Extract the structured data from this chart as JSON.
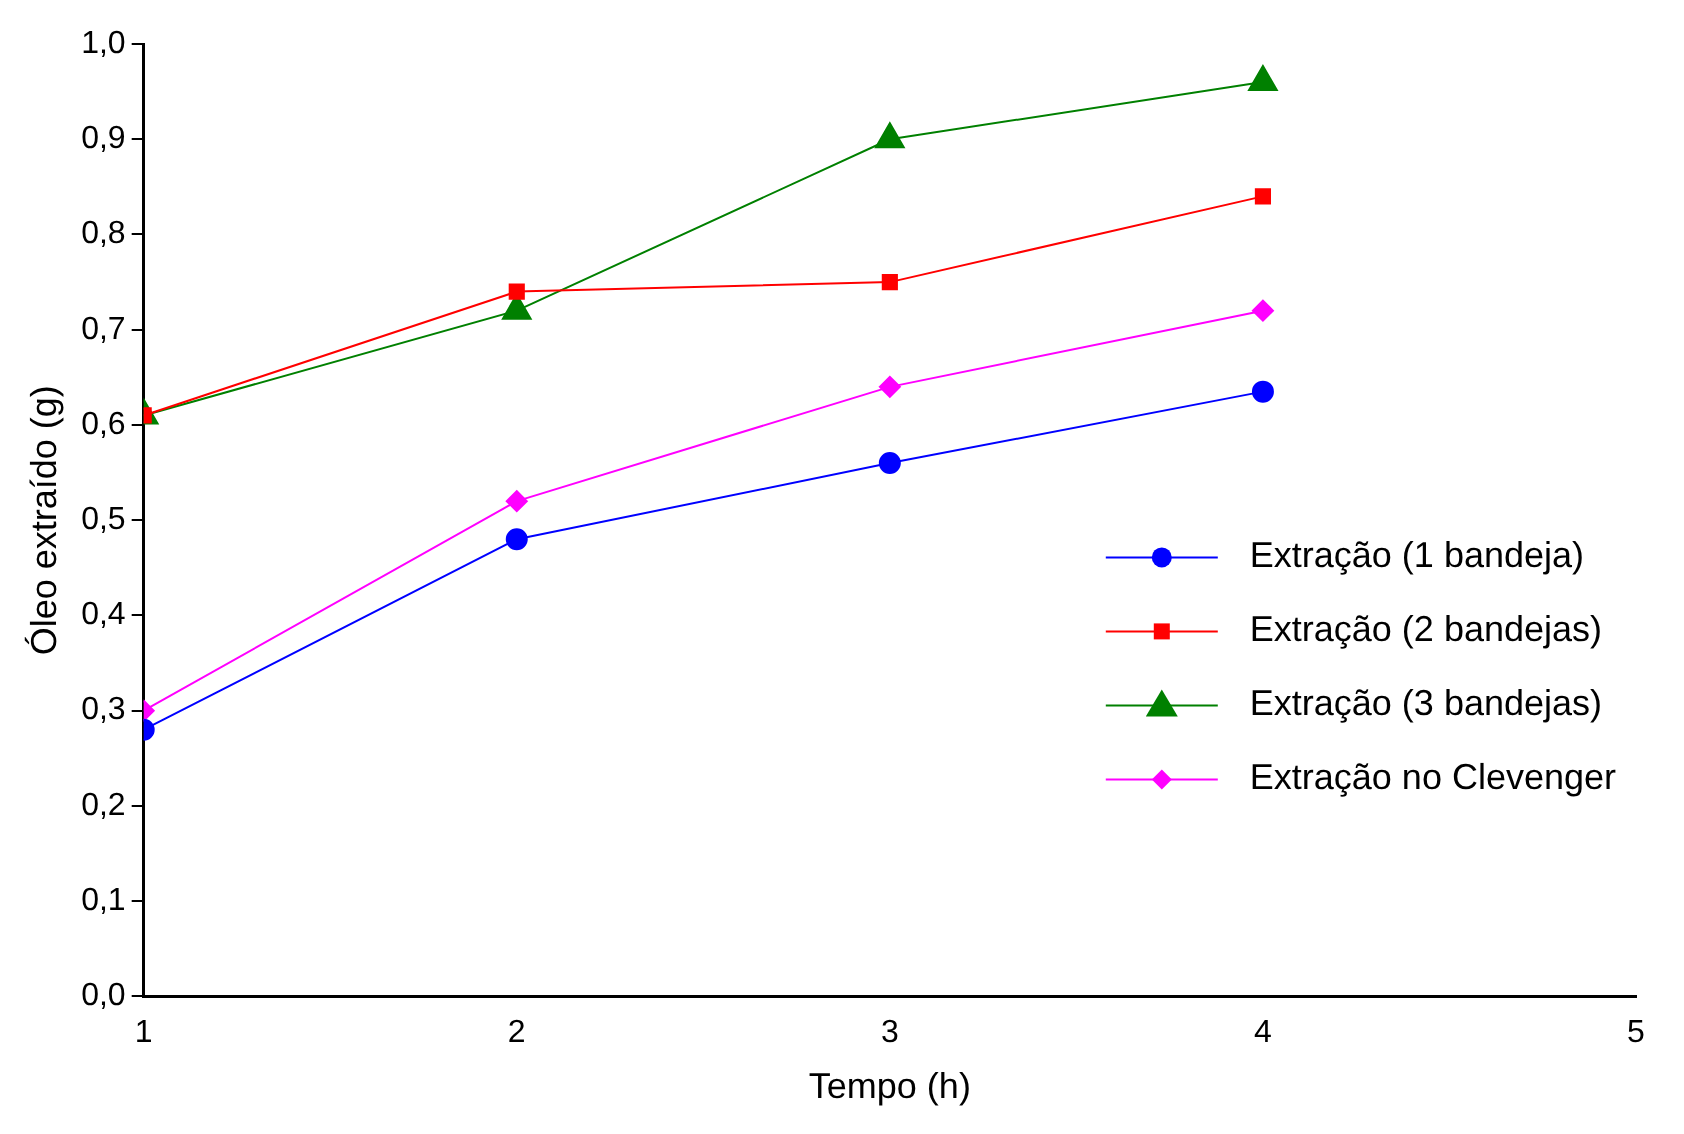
{
  "chart_data": {
    "type": "line",
    "xlabel": "Tempo (h)",
    "ylabel": "Óleo extraído (g)",
    "x": [
      1,
      2,
      3,
      4
    ],
    "xlim": [
      1,
      5
    ],
    "xticks": [
      1,
      2,
      3,
      4,
      5
    ],
    "ylim": [
      0,
      1
    ],
    "yticks": [
      {
        "value": 0,
        "label": "0,0"
      },
      {
        "value": 0.1,
        "label": "0,1"
      },
      {
        "value": 0.2,
        "label": "0,2"
      },
      {
        "value": 0.3,
        "label": "0,3"
      },
      {
        "value": 0.4,
        "label": "0,4"
      },
      {
        "value": 0.5,
        "label": "0,5"
      },
      {
        "value": 0.6,
        "label": "0,6"
      },
      {
        "value": 0.7,
        "label": "0,7"
      },
      {
        "value": 0.8,
        "label": "0,8"
      },
      {
        "value": 0.9,
        "label": "0,9"
      },
      {
        "value": 1,
        "label": "1,0"
      }
    ],
    "grid": false,
    "legend": "bottom right",
    "line_style": "solid",
    "series": [
      {
        "name": "Extração (1 bandeja)",
        "color": "#0000ff",
        "marker": "circle",
        "values": [
          0.28,
          0.48,
          0.56,
          0.635
        ]
      },
      {
        "name": "Extração (2 bandejas)",
        "color": "#ff0000",
        "marker": "square",
        "values": [
          0.61,
          0.74,
          0.75,
          0.84
        ]
      },
      {
        "name": "Extração (3 bandejas)",
        "color": "#008000",
        "marker": "triangle",
        "values": [
          0.61,
          0.72,
          0.9,
          0.96
        ]
      },
      {
        "name": "Extração no Clevenger",
        "color": "#ff00ff",
        "marker": "diamond",
        "values": [
          0.3,
          0.52,
          0.64,
          0.72
        ]
      }
    ]
  }
}
